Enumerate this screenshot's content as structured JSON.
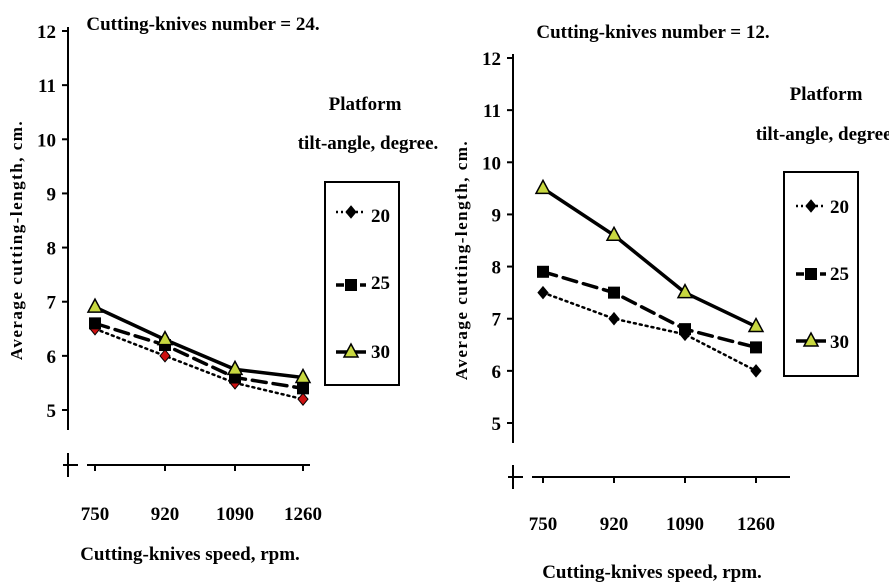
{
  "colors": {
    "axis": "#000000",
    "series_20_marker_left": "#cc1111",
    "series_25_marker": "#000000",
    "series_30_marker_fill": "#c8d840"
  },
  "legend_title": [
    "Platform",
    "tilt-angle, degree."
  ],
  "chart_data": [
    {
      "type": "line",
      "title": "Cutting-knives number = 24.",
      "xlabel": "Cutting-knives speed, rpm.",
      "ylabel": "Average cutting-length, cm.",
      "ylim": [
        5,
        12
      ],
      "y_ticks": [
        "5",
        "6",
        "7",
        "8",
        "9",
        "10",
        "11",
        "12"
      ],
      "categories": [
        "750",
        "920",
        "1090",
        "1260"
      ],
      "legend_position": "right",
      "series": [
        {
          "name": "20",
          "values": [
            6.5,
            6.0,
            5.5,
            5.2
          ],
          "style": "dotted",
          "marker": "diamond"
        },
        {
          "name": "25",
          "values": [
            6.6,
            6.2,
            5.6,
            5.4
          ],
          "style": "dashed",
          "marker": "square"
        },
        {
          "name": "30",
          "values": [
            6.9,
            6.3,
            5.75,
            5.6
          ],
          "style": "solid",
          "marker": "triangle"
        }
      ]
    },
    {
      "type": "line",
      "title": "Cutting-knives number = 12.",
      "xlabel": "Cutting-knives speed, rpm.",
      "ylabel": "Average cutting-length, cm.",
      "ylim": [
        5,
        12
      ],
      "y_ticks": [
        "5",
        "6",
        "7",
        "8",
        "9",
        "10",
        "11",
        "12"
      ],
      "categories": [
        "750",
        "920",
        "1090",
        "1260"
      ],
      "legend_position": "right",
      "series": [
        {
          "name": "20",
          "values": [
            7.5,
            7.0,
            6.7,
            6.0
          ],
          "style": "dotted",
          "marker": "diamond"
        },
        {
          "name": "25",
          "values": [
            7.9,
            7.5,
            6.8,
            6.45
          ],
          "style": "dashed",
          "marker": "square"
        },
        {
          "name": "30",
          "values": [
            9.5,
            8.6,
            7.5,
            6.85
          ],
          "style": "solid",
          "marker": "triangle"
        }
      ]
    }
  ]
}
